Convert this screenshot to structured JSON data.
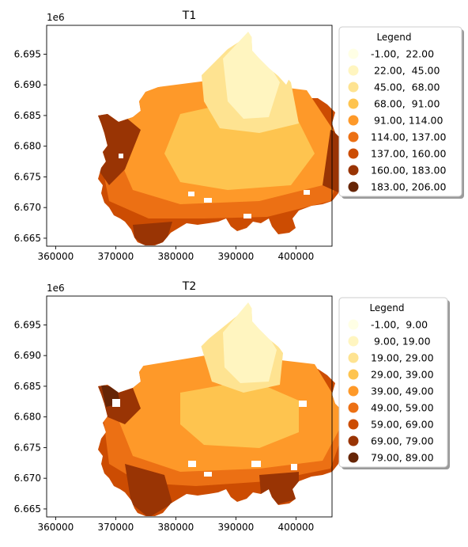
{
  "colors": [
    "#ffffe5",
    "#fff5c0",
    "#fee391",
    "#fec44f",
    "#fe9929",
    "#ec7014",
    "#cc4c02",
    "#993404",
    "#662506"
  ],
  "chart_data": [
    {
      "type": "heatmap",
      "subtype": "choropleth-map",
      "title": "T1",
      "xlim": [
        358500,
        406000
      ],
      "ylim": [
        6663700,
        6699700
      ],
      "x_ticks": [
        360000,
        370000,
        380000,
        390000,
        400000
      ],
      "x_tick_labels": [
        "360000",
        "370000",
        "380000",
        "390000",
        "400000"
      ],
      "y_ticks": [
        6665000,
        6670000,
        6675000,
        6680000,
        6685000,
        6690000,
        6695000
      ],
      "y_tick_labels": [
        "6.665",
        "6.670",
        "6.675",
        "6.680",
        "6.685",
        "6.690",
        "6.695"
      ],
      "y_offset_label": "1e6",
      "legend": {
        "title": "Legend",
        "placement": "outside-right",
        "entries": [
          "-1.00,  22.00",
          " 22.00,  45.00",
          " 45.00,  68.00",
          " 68.00,  91.00",
          " 91.00, 114.00",
          "114.00, 137.00",
          "137.00, 160.00",
          "160.00, 183.00",
          "183.00, 206.00"
        ]
      },
      "classes": [
        [
          -1,
          22
        ],
        [
          22,
          45
        ],
        [
          45,
          68
        ],
        [
          68,
          91
        ],
        [
          91,
          114
        ],
        [
          114,
          137
        ],
        [
          137,
          160
        ],
        [
          160,
          183
        ],
        [
          183,
          206
        ]
      ]
    },
    {
      "type": "heatmap",
      "subtype": "choropleth-map",
      "title": "T2",
      "xlim": [
        358500,
        406000
      ],
      "ylim": [
        6663700,
        6699700
      ],
      "x_ticks": [
        360000,
        370000,
        380000,
        390000,
        400000
      ],
      "x_tick_labels": [
        "360000",
        "370000",
        "380000",
        "390000",
        "400000"
      ],
      "y_ticks": [
        6665000,
        6670000,
        6675000,
        6680000,
        6685000,
        6690000,
        6695000
      ],
      "y_tick_labels": [
        "6.665",
        "6.670",
        "6.675",
        "6.680",
        "6.685",
        "6.690",
        "6.695"
      ],
      "y_offset_label": "1e6",
      "legend": {
        "title": "Legend",
        "placement": "outside-right",
        "entries": [
          "-1.00,  9.00",
          " 9.00, 19.00",
          "19.00, 29.00",
          "29.00, 39.00",
          "39.00, 49.00",
          "49.00, 59.00",
          "59.00, 69.00",
          "69.00, 79.00",
          "79.00, 89.00"
        ]
      },
      "classes": [
        [
          -1,
          9
        ],
        [
          9,
          19
        ],
        [
          19,
          29
        ],
        [
          29,
          39
        ],
        [
          39,
          49
        ],
        [
          49,
          59
        ],
        [
          59,
          69
        ],
        [
          69,
          79
        ],
        [
          79,
          89
        ]
      ]
    }
  ]
}
